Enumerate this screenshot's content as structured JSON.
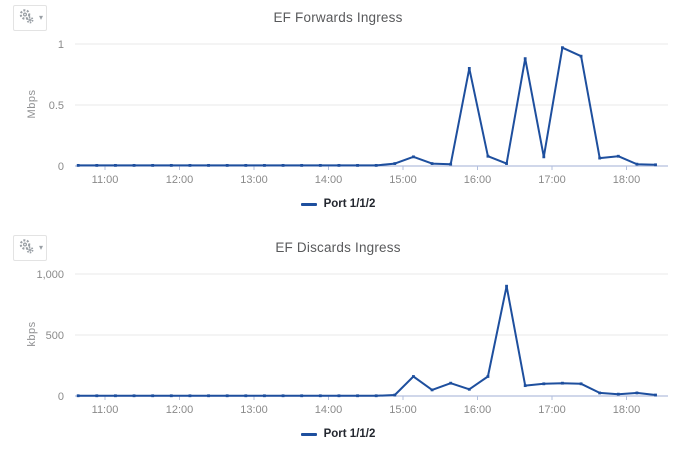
{
  "controls": {
    "settings_icon": "double-gear-icon",
    "caret_glyph": "▾"
  },
  "colors": {
    "accent": "#1e4f9e",
    "grid": "#e9e9e9",
    "axis": "#b3bfdd",
    "muted": "#8a8a8a",
    "legend_text": "#23272f",
    "title_text": "#58595b",
    "icon_gray": "#9aa0a6"
  },
  "chart_data": [
    {
      "type": "line",
      "title": "EF Forwards Ingress",
      "ylabel": "Mbps",
      "ylim": [
        0,
        1.05
      ],
      "yticks": [
        0,
        0.5,
        1
      ],
      "ytick_labels": [
        "0",
        "0.5",
        "1"
      ],
      "xticks_hours": [
        11,
        12,
        13,
        14,
        15,
        16,
        17,
        18
      ],
      "xtick_labels": [
        "11:00",
        "12:00",
        "13:00",
        "14:00",
        "15:00",
        "16:00",
        "17:00",
        "18:00"
      ],
      "grid": "horizontal",
      "legend_position": "bottom",
      "series": [
        {
          "name": "Port 1/1/2",
          "color": "#1e4f9e",
          "x_hours": [
            10.64,
            10.89,
            11.14,
            11.39,
            11.64,
            11.89,
            12.14,
            12.39,
            12.64,
            12.89,
            13.14,
            13.39,
            13.64,
            13.89,
            14.14,
            14.39,
            14.64,
            14.89,
            15.14,
            15.39,
            15.64,
            15.89,
            16.14,
            16.39,
            16.64,
            16.89,
            17.14,
            17.39,
            17.64,
            17.89,
            18.14,
            18.39
          ],
          "y": [
            0.005,
            0.005,
            0.005,
            0.005,
            0.005,
            0.005,
            0.005,
            0.005,
            0.005,
            0.005,
            0.005,
            0.005,
            0.005,
            0.005,
            0.005,
            0.005,
            0.005,
            0.02,
            0.075,
            0.02,
            0.015,
            0.8,
            0.08,
            0.02,
            0.88,
            0.075,
            0.97,
            0.9,
            0.065,
            0.08,
            0.015,
            0.01
          ]
        }
      ]
    },
    {
      "type": "line",
      "title": "EF Discards Ingress",
      "ylabel": "kbps",
      "ylim": [
        0,
        1050
      ],
      "yticks": [
        0,
        500,
        1000
      ],
      "ytick_labels": [
        "0",
        "500",
        "1,000"
      ],
      "xticks_hours": [
        11,
        12,
        13,
        14,
        15,
        16,
        17,
        18
      ],
      "xtick_labels": [
        "11:00",
        "12:00",
        "13:00",
        "14:00",
        "15:00",
        "16:00",
        "17:00",
        "18:00"
      ],
      "grid": "horizontal",
      "legend_position": "bottom",
      "series": [
        {
          "name": "Port 1/1/2",
          "color": "#1e4f9e",
          "x_hours": [
            10.64,
            10.89,
            11.14,
            11.39,
            11.64,
            11.89,
            12.14,
            12.39,
            12.64,
            12.89,
            13.14,
            13.39,
            13.64,
            13.89,
            14.14,
            14.39,
            14.64,
            14.89,
            15.14,
            15.39,
            15.64,
            15.89,
            16.14,
            16.39,
            16.64,
            16.89,
            17.14,
            17.39,
            17.64,
            17.89,
            18.14,
            18.39
          ],
          "y": [
            2,
            2,
            2,
            2,
            2,
            2,
            2,
            2,
            2,
            2,
            2,
            2,
            2,
            2,
            2,
            2,
            2,
            8,
            160,
            50,
            105,
            55,
            160,
            900,
            85,
            100,
            105,
            100,
            25,
            15,
            25,
            8
          ]
        }
      ]
    }
  ]
}
